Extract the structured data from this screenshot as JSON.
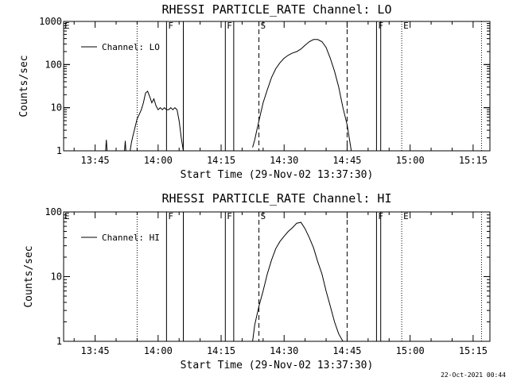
{
  "page": {
    "footer": "22-Oct-2021 00:44"
  },
  "chart_data": [
    {
      "type": "line",
      "title": "RHESSI PARTICLE_RATE Channel: LO",
      "xlabel": "Start Time (29-Nov-02 13:37:30)",
      "ylabel": "Counts/sec",
      "yscale": "log",
      "xlim": [
        "13:37:30",
        "15:19:00"
      ],
      "ylim": [
        1,
        1000
      ],
      "x_ticks": [
        "13:45",
        "14:00",
        "14:15",
        "14:30",
        "14:45",
        "15:00",
        "15:15"
      ],
      "y_ticks": [
        "1",
        "10",
        "100",
        "1000"
      ],
      "legend": {
        "position": "top-left",
        "entries": [
          "Channel: LO"
        ]
      },
      "series": [
        {
          "name": "Channel: LO",
          "x": [
            "13:47:30",
            "13:47:40",
            "13:47:50",
            "13:52:00",
            "13:52:10",
            "13:52:20",
            "13:53:20",
            "13:53:40",
            "13:54:00",
            "13:54:30",
            "13:55:00",
            "13:55:30",
            "13:56:00",
            "13:56:30",
            "13:57:00",
            "13:57:30",
            "13:58:00",
            "13:58:30",
            "13:59:00",
            "13:59:30",
            "14:00:00",
            "14:00:30",
            "14:01:00",
            "14:01:30",
            "14:02:00",
            "14:02:30",
            "14:03:00",
            "14:03:30",
            "14:04:00",
            "14:04:30",
            "14:05:00",
            "14:05:30",
            "14:06:00",
            null,
            "14:22:30",
            "14:23:00",
            "14:23:30",
            "14:24:00",
            "14:24:30",
            "14:25:00",
            "14:26:00",
            "14:27:00",
            "14:28:00",
            "14:29:00",
            "14:30:00",
            "14:31:00",
            "14:32:00",
            "14:33:00",
            "14:34:00",
            "14:35:00",
            "14:36:00",
            "14:37:00",
            "14:38:00",
            "14:39:00",
            "14:40:00",
            "14:41:00",
            "14:42:00",
            "14:43:00",
            "14:44:00",
            "14:45:00",
            "14:45:30",
            "14:46:00"
          ],
          "y": [
            1,
            1.8,
            1,
            1,
            1.7,
            1,
            1,
            1.6,
            2.2,
            3.5,
            5.5,
            7,
            9,
            13,
            22,
            24,
            18,
            13,
            16,
            11,
            9,
            10,
            9,
            10,
            9,
            9,
            10,
            9,
            10,
            9,
            5,
            2,
            1,
            null,
            1.2,
            1.8,
            3,
            5,
            8,
            13,
            26,
            50,
            80,
            110,
            140,
            165,
            185,
            200,
            230,
            280,
            340,
            380,
            380,
            340,
            250,
            140,
            70,
            30,
            10,
            4,
            2,
            1
          ]
        }
      ],
      "vertical_markers": [
        {
          "time": "13:55:00",
          "style": "dotted",
          "label": ""
        },
        {
          "time": "14:02:00",
          "style": "solid",
          "label": "F"
        },
        {
          "time": "14:06:00",
          "style": "solid",
          "label": ""
        },
        {
          "time": "14:16:00",
          "style": "solid",
          "label": "F"
        },
        {
          "time": "14:18:00",
          "style": "solid",
          "label": ""
        },
        {
          "time": "14:24:00",
          "style": "dashed",
          "label": "S"
        },
        {
          "time": "14:45:00",
          "style": "dashed",
          "label": ""
        },
        {
          "time": "14:52:00",
          "style": "solid",
          "label": "F"
        },
        {
          "time": "14:53:00",
          "style": "solid",
          "label": ""
        },
        {
          "time": "14:58:00",
          "style": "dotted",
          "label": "E"
        },
        {
          "time": "15:17:00",
          "style": "dotted",
          "label": ""
        }
      ],
      "left_flag": "E"
    },
    {
      "type": "line",
      "title": "RHESSI PARTICLE_RATE Channel: HI",
      "xlabel": "Start Time (29-Nov-02 13:37:30)",
      "ylabel": "Counts/sec",
      "yscale": "log",
      "xlim": [
        "13:37:30",
        "15:19:00"
      ],
      "ylim": [
        1,
        100
      ],
      "x_ticks": [
        "13:45",
        "14:00",
        "14:15",
        "14:30",
        "14:45",
        "15:00",
        "15:15"
      ],
      "y_ticks": [
        "1",
        "10",
        "100"
      ],
      "legend": {
        "position": "top-left",
        "entries": [
          "Channel: HI"
        ]
      },
      "series": [
        {
          "name": "Channel: HI",
          "x": [
            "14:22:30",
            "14:23:00",
            "14:23:30",
            "14:24:00",
            "14:25:00",
            "14:26:00",
            "14:27:00",
            "14:28:00",
            "14:29:00",
            "14:30:00",
            "14:31:00",
            "14:32:00",
            "14:33:00",
            "14:34:00",
            "14:35:00",
            "14:36:00",
            "14:37:00",
            "14:38:00",
            "14:39:00",
            "14:40:00",
            "14:41:00",
            "14:42:00",
            "14:43:00",
            "14:44:00"
          ],
          "y": [
            1,
            1.8,
            2.5,
            3.5,
            6,
            11,
            18,
            27,
            35,
            42,
            50,
            57,
            67,
            69,
            55,
            40,
            28,
            17,
            11,
            6,
            3.5,
            2,
            1.3,
            1
          ]
        }
      ],
      "vertical_markers": [
        {
          "time": "13:55:00",
          "style": "dotted",
          "label": ""
        },
        {
          "time": "14:02:00",
          "style": "solid",
          "label": "F"
        },
        {
          "time": "14:06:00",
          "style": "solid",
          "label": ""
        },
        {
          "time": "14:16:00",
          "style": "solid",
          "label": "F"
        },
        {
          "time": "14:18:00",
          "style": "solid",
          "label": ""
        },
        {
          "time": "14:24:00",
          "style": "dashed",
          "label": "S"
        },
        {
          "time": "14:45:00",
          "style": "dashed",
          "label": ""
        },
        {
          "time": "14:52:00",
          "style": "solid",
          "label": "F"
        },
        {
          "time": "14:53:00",
          "style": "solid",
          "label": ""
        },
        {
          "time": "14:58:00",
          "style": "dotted",
          "label": "E"
        },
        {
          "time": "15:17:00",
          "style": "dotted",
          "label": ""
        }
      ],
      "left_flag": "E"
    }
  ]
}
